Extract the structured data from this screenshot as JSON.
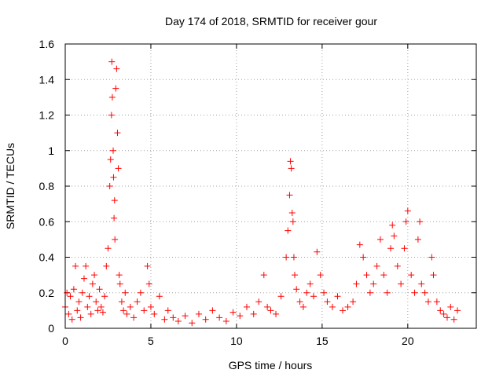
{
  "chart_data": {
    "type": "scatter",
    "title": "Day 174 of 2018, SRMTID for receiver gour",
    "xlabel": "GPS time / hours",
    "ylabel": "SRMTID / TECUs",
    "xlim": [
      0,
      24
    ],
    "ylim": [
      0,
      1.6
    ],
    "xticks": [
      0,
      5,
      10,
      15,
      20
    ],
    "yticks": [
      0,
      0.2,
      0.4,
      0.6,
      0.8,
      1,
      1.2,
      1.4,
      1.6
    ],
    "ytick_labels": [
      "0",
      "0.2",
      "0.4",
      "0.6",
      "0.8",
      "1",
      "1.2",
      "1.4",
      "1.6"
    ],
    "grid": true,
    "marker": "+",
    "series": [
      {
        "name": "SRMTID",
        "color": "#ff0000",
        "x": [
          0.0,
          0.1,
          0.2,
          0.3,
          0.4,
          0.5,
          0.6,
          0.7,
          0.8,
          0.9,
          1.0,
          1.1,
          1.2,
          1.3,
          1.4,
          1.5,
          1.6,
          1.7,
          1.8,
          1.9,
          2.0,
          2.1,
          2.2,
          2.3,
          2.4,
          2.5,
          2.6,
          2.65,
          2.7,
          2.72,
          2.75,
          2.8,
          2.82,
          2.85,
          2.88,
          2.9,
          2.95,
          3.0,
          3.05,
          3.1,
          3.15,
          3.2,
          3.3,
          3.4,
          3.5,
          3.6,
          3.8,
          4.0,
          4.2,
          4.4,
          4.6,
          4.8,
          4.9,
          5.0,
          5.2,
          5.5,
          5.8,
          6.0,
          6.3,
          6.6,
          7.0,
          7.4,
          7.8,
          8.2,
          8.6,
          9.0,
          9.4,
          9.8,
          10.2,
          10.6,
          11.0,
          11.3,
          11.6,
          11.8,
          12.0,
          12.3,
          12.6,
          12.9,
          13.0,
          13.1,
          13.15,
          13.2,
          13.25,
          13.3,
          13.35,
          13.4,
          13.5,
          13.7,
          13.9,
          14.1,
          14.3,
          14.5,
          14.7,
          14.9,
          15.1,
          15.3,
          15.6,
          15.9,
          16.2,
          16.5,
          16.8,
          17.0,
          17.2,
          17.4,
          17.6,
          17.8,
          18.0,
          18.2,
          18.4,
          18.6,
          18.8,
          19.0,
          19.1,
          19.2,
          19.4,
          19.6,
          19.8,
          19.9,
          20.0,
          20.2,
          20.4,
          20.6,
          20.7,
          20.8,
          21.0,
          21.2,
          21.4,
          21.5,
          21.7,
          21.9,
          22.1,
          22.3,
          22.5,
          22.7,
          22.9
        ],
        "y": [
          0.12,
          0.2,
          0.08,
          0.18,
          0.05,
          0.22,
          0.35,
          0.1,
          0.15,
          0.06,
          0.2,
          0.28,
          0.35,
          0.12,
          0.18,
          0.08,
          0.25,
          0.3,
          0.15,
          0.1,
          0.22,
          0.12,
          0.09,
          0.18,
          0.35,
          0.45,
          0.8,
          0.95,
          1.2,
          1.5,
          1.3,
          1.0,
          0.85,
          0.62,
          0.72,
          0.5,
          1.35,
          1.46,
          1.1,
          0.9,
          0.3,
          0.25,
          0.15,
          0.1,
          0.2,
          0.08,
          0.12,
          0.06,
          0.15,
          0.2,
          0.1,
          0.35,
          0.25,
          0.12,
          0.08,
          0.18,
          0.05,
          0.1,
          0.06,
          0.04,
          0.07,
          0.03,
          0.08,
          0.05,
          0.1,
          0.06,
          0.04,
          0.09,
          0.07,
          0.12,
          0.08,
          0.15,
          0.3,
          0.12,
          0.1,
          0.08,
          0.18,
          0.4,
          0.55,
          0.75,
          0.94,
          0.9,
          0.65,
          0.6,
          0.4,
          0.3,
          0.22,
          0.15,
          0.12,
          0.2,
          0.25,
          0.18,
          0.43,
          0.3,
          0.2,
          0.15,
          0.12,
          0.18,
          0.1,
          0.12,
          0.15,
          0.25,
          0.47,
          0.4,
          0.3,
          0.2,
          0.25,
          0.35,
          0.5,
          0.3,
          0.2,
          0.45,
          0.58,
          0.52,
          0.35,
          0.25,
          0.45,
          0.6,
          0.66,
          0.3,
          0.2,
          0.5,
          0.6,
          0.25,
          0.2,
          0.15,
          0.4,
          0.3,
          0.15,
          0.1,
          0.08,
          0.06,
          0.12,
          0.05,
          0.1
        ]
      }
    ]
  }
}
